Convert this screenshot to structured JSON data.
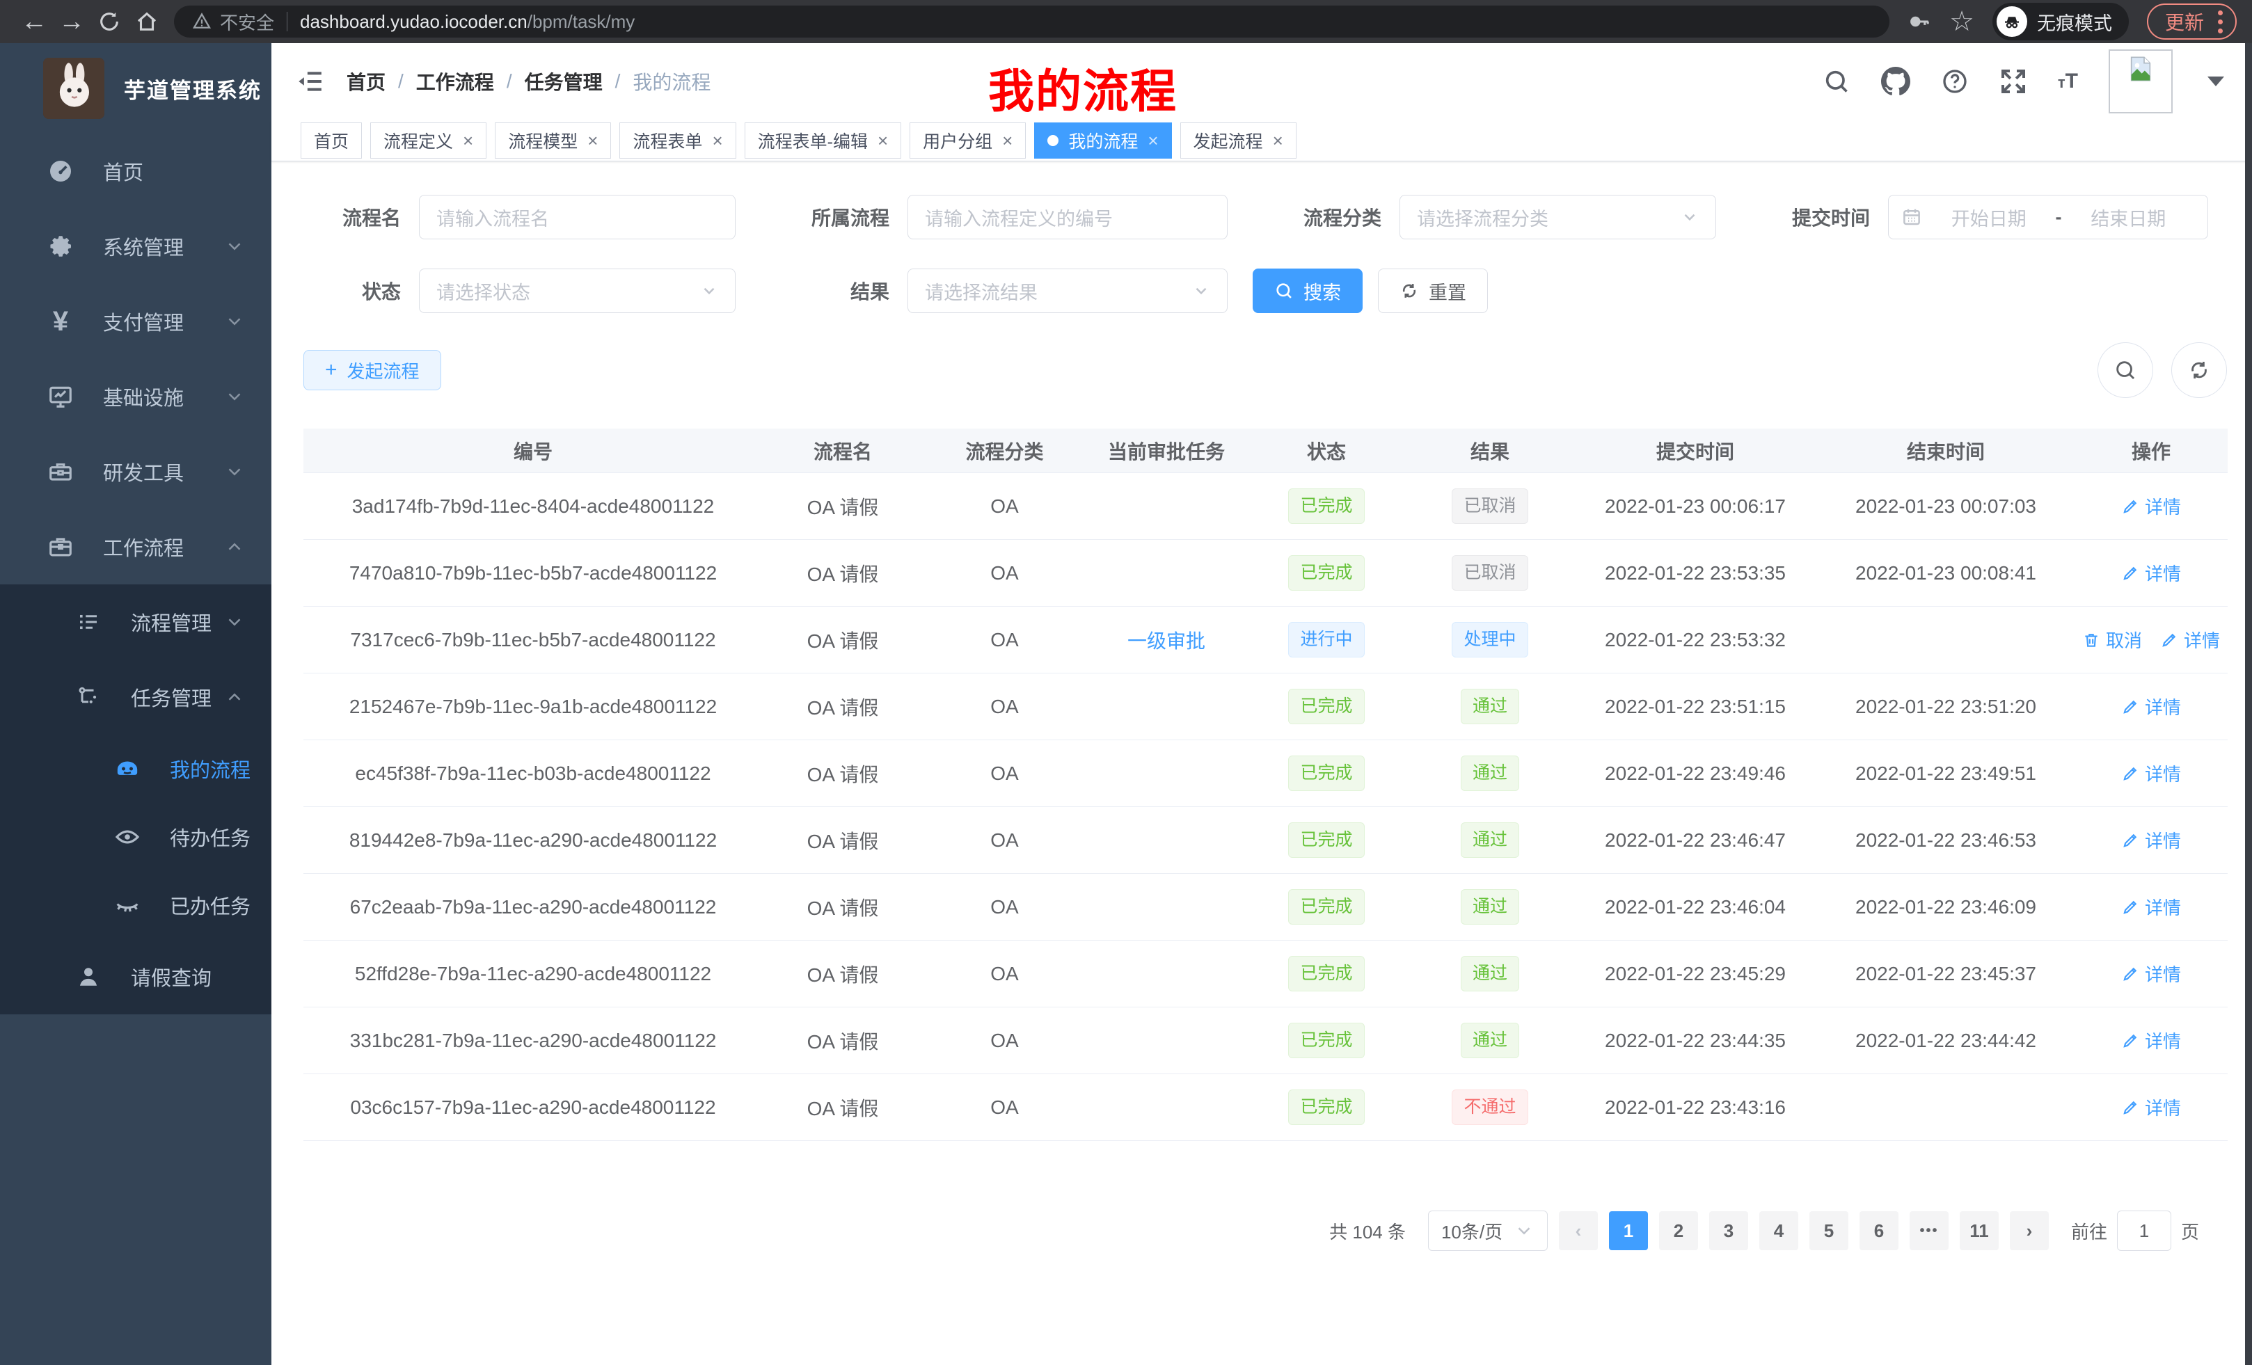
{
  "browser": {
    "security_label": "不安全",
    "url_host": "dashboard.yudao.iocoder.cn",
    "url_path": "/bpm/task/my",
    "incognito_label": "无痕模式",
    "update_label": "更新"
  },
  "sidebar": {
    "app_title": "芋道管理系统",
    "menu": [
      {
        "key": "home",
        "label": "首页",
        "icon": "dashboard-icon",
        "expand": null
      },
      {
        "key": "system",
        "label": "系统管理",
        "icon": "gear-icon",
        "expand": "down"
      },
      {
        "key": "pay",
        "label": "支付管理",
        "icon": "yen-icon",
        "expand": "down"
      },
      {
        "key": "infra",
        "label": "基础设施",
        "icon": "monitor-icon",
        "expand": "down"
      },
      {
        "key": "devtools",
        "label": "研发工具",
        "icon": "toolbox-icon",
        "expand": "down"
      },
      {
        "key": "workflow",
        "label": "工作流程",
        "icon": "briefcase-icon",
        "expand": "up"
      }
    ],
    "submenu": [
      {
        "key": "process-manage",
        "label": "流程管理",
        "icon": "list-icon",
        "expand": "down",
        "level": 1,
        "active": false
      },
      {
        "key": "task-manage",
        "label": "任务管理",
        "icon": "flow-icon",
        "expand": "up",
        "level": 1,
        "active": false
      },
      {
        "key": "my-process",
        "label": "我的流程",
        "icon": "robot-icon",
        "expand": null,
        "level": 2,
        "active": true
      },
      {
        "key": "todo-task",
        "label": "待办任务",
        "icon": "eye-icon",
        "expand": null,
        "level": 2,
        "active": false
      },
      {
        "key": "done-task",
        "label": "已办任务",
        "icon": "eye-closed-icon",
        "expand": null,
        "level": 2,
        "active": false
      },
      {
        "key": "leave-query",
        "label": "请假查询",
        "icon": "user-icon",
        "expand": null,
        "level": 1,
        "active": false
      }
    ]
  },
  "header": {
    "breadcrumb": [
      "首页",
      "工作流程",
      "任务管理",
      "我的流程"
    ],
    "annotation": "我的流程"
  },
  "tabs": [
    {
      "key": "home",
      "label": "首页",
      "closable": false,
      "active": false
    },
    {
      "key": "process-definition",
      "label": "流程定义",
      "closable": true,
      "active": false
    },
    {
      "key": "process-model",
      "label": "流程模型",
      "closable": true,
      "active": false
    },
    {
      "key": "process-form",
      "label": "流程表单",
      "closable": true,
      "active": false
    },
    {
      "key": "process-form-edit",
      "label": "流程表单-编辑",
      "closable": true,
      "active": false
    },
    {
      "key": "user-group",
      "label": "用户分组",
      "closable": true,
      "active": false
    },
    {
      "key": "my-process",
      "label": "我的流程",
      "closable": true,
      "active": true
    },
    {
      "key": "start-process",
      "label": "发起流程",
      "closable": true,
      "active": false
    }
  ],
  "filters": {
    "name_label": "流程名",
    "name_placeholder": "请输入流程名",
    "definition_label": "所属流程",
    "definition_placeholder": "请输入流程定义的编号",
    "category_label": "流程分类",
    "category_placeholder": "请选择流程分类",
    "time_label": "提交时间",
    "start_placeholder": "开始日期",
    "range_separator": "-",
    "end_placeholder": "结束日期",
    "status_label": "状态",
    "status_placeholder": "请选择状态",
    "result_label": "结果",
    "result_placeholder": "请选择流结果",
    "search_label": "搜索",
    "reset_label": "重置"
  },
  "toolbar": {
    "create_label": "发起流程"
  },
  "table": {
    "headers": [
      "编号",
      "流程名",
      "流程分类",
      "当前审批任务",
      "状态",
      "结果",
      "提交时间",
      "结束时间",
      "操作"
    ],
    "detail_label": "详情",
    "cancel_label": "取消",
    "rows": [
      {
        "id": "3ad174fb-7b9d-11ec-8404-acde48001122",
        "name": "OA 请假",
        "category": "OA",
        "task": "",
        "status": "已完成",
        "status_type": "success",
        "result": "已取消",
        "result_type": "info",
        "submit": "2022-01-23 00:06:17",
        "end": "2022-01-23 00:07:03",
        "ops": [
          "detail"
        ]
      },
      {
        "id": "7470a810-7b9b-11ec-b5b7-acde48001122",
        "name": "OA 请假",
        "category": "OA",
        "task": "",
        "status": "已完成",
        "status_type": "success",
        "result": "已取消",
        "result_type": "info",
        "submit": "2022-01-22 23:53:35",
        "end": "2022-01-23 00:08:41",
        "ops": [
          "detail"
        ]
      },
      {
        "id": "7317cec6-7b9b-11ec-b5b7-acde48001122",
        "name": "OA 请假",
        "category": "OA",
        "task": "一级审批",
        "status": "进行中",
        "status_type": "primary",
        "result": "处理中",
        "result_type": "primary",
        "submit": "2022-01-22 23:53:32",
        "end": "",
        "ops": [
          "cancel",
          "detail"
        ]
      },
      {
        "id": "2152467e-7b9b-11ec-9a1b-acde48001122",
        "name": "OA 请假",
        "category": "OA",
        "task": "",
        "status": "已完成",
        "status_type": "success",
        "result": "通过",
        "result_type": "success",
        "submit": "2022-01-22 23:51:15",
        "end": "2022-01-22 23:51:20",
        "ops": [
          "detail"
        ]
      },
      {
        "id": "ec45f38f-7b9a-11ec-b03b-acde48001122",
        "name": "OA 请假",
        "category": "OA",
        "task": "",
        "status": "已完成",
        "status_type": "success",
        "result": "通过",
        "result_type": "success",
        "submit": "2022-01-22 23:49:46",
        "end": "2022-01-22 23:49:51",
        "ops": [
          "detail"
        ]
      },
      {
        "id": "819442e8-7b9a-11ec-a290-acde48001122",
        "name": "OA 请假",
        "category": "OA",
        "task": "",
        "status": "已完成",
        "status_type": "success",
        "result": "通过",
        "result_type": "success",
        "submit": "2022-01-22 23:46:47",
        "end": "2022-01-22 23:46:53",
        "ops": [
          "detail"
        ]
      },
      {
        "id": "67c2eaab-7b9a-11ec-a290-acde48001122",
        "name": "OA 请假",
        "category": "OA",
        "task": "",
        "status": "已完成",
        "status_type": "success",
        "result": "通过",
        "result_type": "success",
        "submit": "2022-01-22 23:46:04",
        "end": "2022-01-22 23:46:09",
        "ops": [
          "detail"
        ]
      },
      {
        "id": "52ffd28e-7b9a-11ec-a290-acde48001122",
        "name": "OA 请假",
        "category": "OA",
        "task": "",
        "status": "已完成",
        "status_type": "success",
        "result": "通过",
        "result_type": "success",
        "submit": "2022-01-22 23:45:29",
        "end": "2022-01-22 23:45:37",
        "ops": [
          "detail"
        ]
      },
      {
        "id": "331bc281-7b9a-11ec-a290-acde48001122",
        "name": "OA 请假",
        "category": "OA",
        "task": "",
        "status": "已完成",
        "status_type": "success",
        "result": "通过",
        "result_type": "success",
        "submit": "2022-01-22 23:44:35",
        "end": "2022-01-22 23:44:42",
        "ops": [
          "detail"
        ]
      },
      {
        "id": "03c6c157-7b9a-11ec-a290-acde48001122",
        "name": "OA 请假",
        "category": "OA",
        "task": "",
        "status": "已完成",
        "status_type": "success",
        "result": "不通过",
        "result_type": "danger",
        "submit": "2022-01-22 23:43:16",
        "end": "",
        "ops": [
          "detail"
        ]
      }
    ]
  },
  "pagination": {
    "total_text": "共 104 条",
    "page_size": "10条/页",
    "pages": [
      "1",
      "2",
      "3",
      "4",
      "5",
      "6",
      "•••",
      "11"
    ],
    "active_page": "1",
    "goto_label": "前往",
    "goto_value": "1",
    "page_unit": "页"
  },
  "colors": {
    "accent_blue": "#409eff",
    "success_green": "#67c23a",
    "danger_red": "#f56c6c",
    "info_gray": "#909399",
    "sidebar_bg": "#344456",
    "submenu_bg": "#212d3d",
    "annotation_red": "#fe0000",
    "chrome_update_red": "#f28b82"
  }
}
